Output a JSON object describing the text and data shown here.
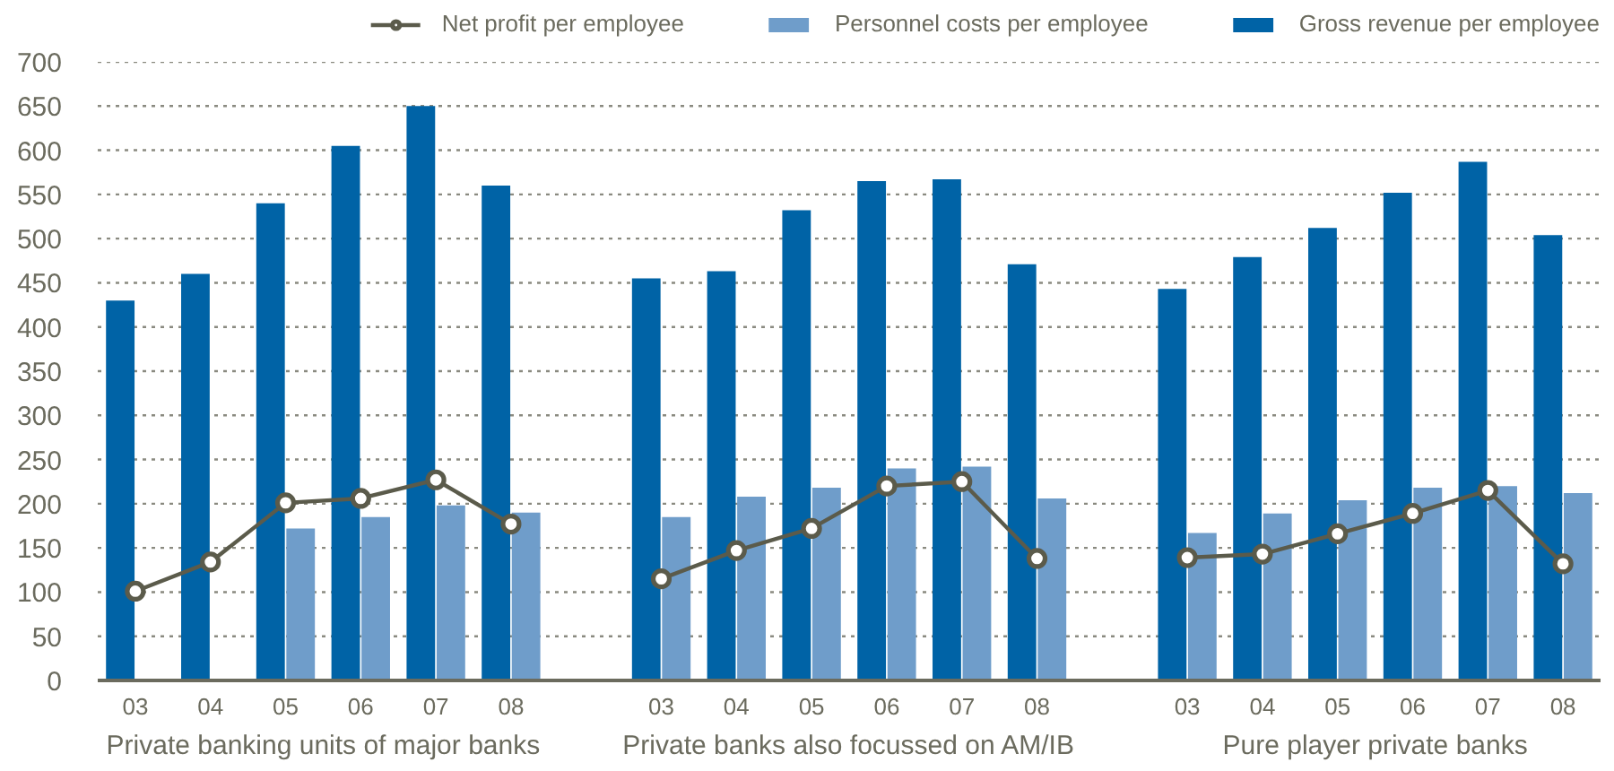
{
  "chart_data": {
    "type": "bar",
    "categories": [
      "03",
      "04",
      "05",
      "06",
      "07",
      "08",
      null,
      "03",
      "04",
      "05",
      "06",
      "07",
      "08",
      null,
      "03",
      "04",
      "05",
      "06",
      "07",
      "08"
    ],
    "series": [
      {
        "name": "Gross revenue per employee",
        "color": "#0063a6",
        "values": [
          430,
          460,
          540,
          605,
          650,
          560,
          null,
          455,
          463,
          532,
          565,
          567,
          471,
          null,
          443,
          479,
          512,
          552,
          587,
          504
        ]
      },
      {
        "name": "Personnel costs per employee",
        "color": "#6f9dca",
        "values": [
          null,
          null,
          172,
          185,
          198,
          190,
          null,
          185,
          208,
          218,
          240,
          242,
          206,
          null,
          167,
          189,
          204,
          218,
          220,
          212
        ]
      },
      {
        "name": "Net profit per employee",
        "type": "line",
        "color": "#5b5b4b",
        "values": [
          101,
          134,
          201,
          206,
          227,
          177,
          null,
          115,
          147,
          172,
          220,
          225,
          138,
          null,
          139,
          143,
          166,
          189,
          215,
          132
        ]
      }
    ],
    "ylim": [
      0,
      700
    ],
    "yticks": [
      0,
      50,
      100,
      150,
      200,
      250,
      300,
      350,
      400,
      450,
      500,
      550,
      600,
      650,
      700
    ],
    "grid": "y",
    "legend": "top right",
    "marker": "circle",
    "annotations": [
      "Private banking units of major banks",
      "Private banks also focussed on AM/IB",
      "Pure player private banks"
    ]
  }
}
